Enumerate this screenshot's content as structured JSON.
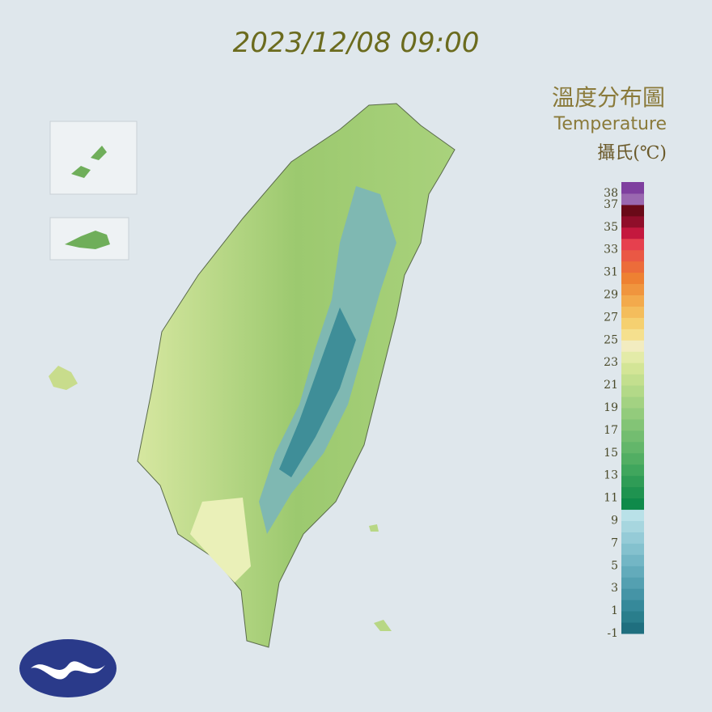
{
  "header": {
    "timestamp": "2023/12/08 09:00",
    "title": "溫度分布圖",
    "subtitle": "Temperature",
    "unit": "攝氏(℃)"
  },
  "legend": {
    "ticks": [
      38,
      37,
      35,
      33,
      31,
      29,
      27,
      25,
      23,
      21,
      19,
      17,
      15,
      13,
      11,
      9,
      7,
      5,
      3,
      1,
      -1
    ],
    "range": [
      -1,
      39
    ],
    "colors": [
      "#1f6f7f",
      "#2a7e8c",
      "#36899a",
      "#4594a6",
      "#54a0b1",
      "#63abbb",
      "#73b6c5",
      "#84c1ce",
      "#95cbd7",
      "#a7d6df",
      "#b9e1e8",
      "#0f8a4a",
      "#1f9350",
      "#2f9c56",
      "#40a65d",
      "#52ae63",
      "#63b66a",
      "#73bd70",
      "#83c476",
      "#93cb7c",
      "#a3d282",
      "#b3d988",
      "#c3df8e",
      "#d3e596",
      "#e3eba8",
      "#f2ecc0",
      "#f5e08e",
      "#f5d070",
      "#f4bd5c",
      "#f3aa4c",
      "#f0953e",
      "#ee8132",
      "#ec6c3a",
      "#ea5844",
      "#e6404e",
      "#c4183e",
      "#900e2a",
      "#6a0a18",
      "#9a68b0",
      "#7f3f9f"
    ]
  }
}
